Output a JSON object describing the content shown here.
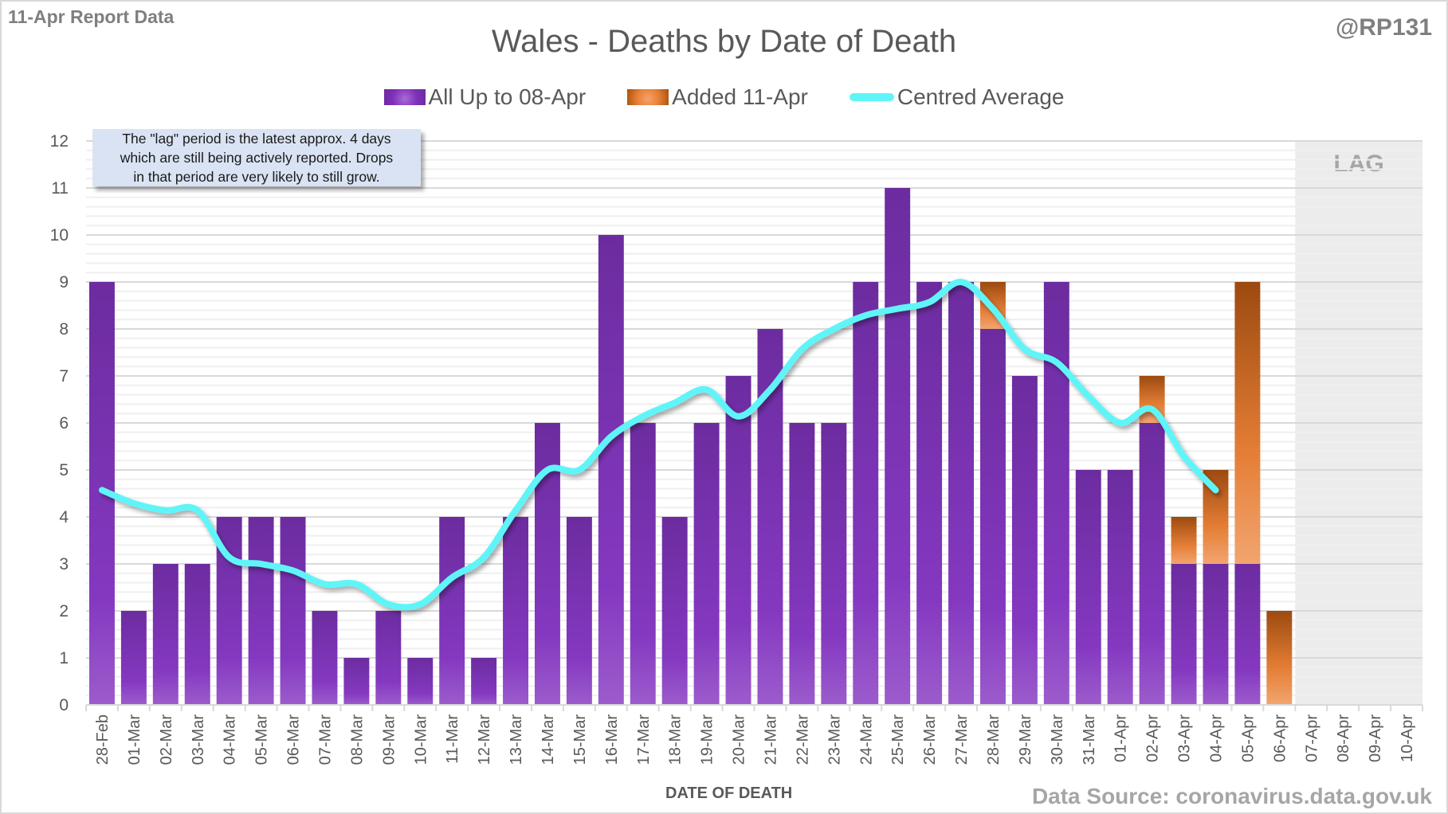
{
  "header": {
    "report_label": "11-Apr Report Data",
    "handle": "@RP131",
    "title": "Wales - Deaths by Date of Death"
  },
  "legend": [
    {
      "label": "All Up to 08-Apr",
      "icon": "purple-bar-swatch",
      "color": "#7e30b8"
    },
    {
      "label": "Added 11-Apr",
      "icon": "orange-bar-swatch",
      "color": "#e67e33"
    },
    {
      "label": "Centred Average",
      "icon": "cyan-line-swatch",
      "color": "#5ff5f8"
    }
  ],
  "annotation": {
    "lines": [
      "The \"lag\" period is the latest approx. 4 days",
      "which are still being actively reported.  Drops",
      "in that period are very likely to still grow."
    ]
  },
  "footer": {
    "xlabel": "DATE OF DEATH",
    "source": "Data Source: coronavirus.data.gov.uk"
  },
  "chart_data": {
    "type": "bar",
    "stacked": true,
    "title": "Wales - Deaths by Date of Death",
    "xlabel": "DATE OF DEATH",
    "ylabel": "",
    "ylim": [
      0,
      12
    ],
    "yticks": [
      0,
      1,
      2,
      3,
      4,
      5,
      6,
      7,
      8,
      9,
      10,
      11,
      12
    ],
    "grid": true,
    "legend_position": "top",
    "lag_region": {
      "label": "LAG",
      "from": "07-Apr",
      "to": "10-Apr"
    },
    "categories": [
      "28-Feb",
      "01-Mar",
      "02-Mar",
      "03-Mar",
      "04-Mar",
      "05-Mar",
      "06-Mar",
      "07-Mar",
      "08-Mar",
      "09-Mar",
      "10-Mar",
      "11-Mar",
      "12-Mar",
      "13-Mar",
      "14-Mar",
      "15-Mar",
      "16-Mar",
      "17-Mar",
      "18-Mar",
      "19-Mar",
      "20-Mar",
      "21-Mar",
      "22-Mar",
      "23-Mar",
      "24-Mar",
      "25-Mar",
      "26-Mar",
      "27-Mar",
      "28-Mar",
      "29-Mar",
      "30-Mar",
      "31-Mar",
      "01-Apr",
      "02-Apr",
      "03-Apr",
      "04-Apr",
      "05-Apr",
      "06-Apr",
      "07-Apr",
      "08-Apr",
      "09-Apr",
      "10-Apr"
    ],
    "series": [
      {
        "name": "All Up to 08-Apr",
        "type": "bar",
        "color": "#7e30b8",
        "values": [
          9,
          2,
          3,
          3,
          4,
          4,
          4,
          2,
          1,
          2,
          1,
          4,
          1,
          4,
          6,
          4,
          10,
          6,
          4,
          6,
          7,
          8,
          6,
          6,
          9,
          11,
          9,
          9,
          8,
          7,
          9,
          5,
          5,
          6,
          3,
          3,
          3,
          0,
          0,
          0,
          0,
          0
        ]
      },
      {
        "name": "Added 11-Apr",
        "type": "bar",
        "color": "#e67e33",
        "values": [
          0,
          0,
          0,
          0,
          0,
          0,
          0,
          0,
          0,
          0,
          0,
          0,
          0,
          0,
          0,
          0,
          0,
          0,
          0,
          0,
          0,
          0,
          0,
          0,
          0,
          0,
          0,
          0,
          1,
          0,
          0,
          0,
          0,
          1,
          1,
          2,
          6,
          2,
          0,
          0,
          0,
          0
        ]
      },
      {
        "name": "Centred Average",
        "type": "line",
        "color": "#5ff5f8",
        "values": [
          4.57,
          4.29,
          4.14,
          4.14,
          3.14,
          3.0,
          2.86,
          2.57,
          2.57,
          2.14,
          2.14,
          2.71,
          3.14,
          4.14,
          5.0,
          5.0,
          5.71,
          6.14,
          6.43,
          6.71,
          6.14,
          6.71,
          7.57,
          8.0,
          8.29,
          8.43,
          8.57,
          9.0,
          8.43,
          7.57,
          7.29,
          6.57,
          6.0,
          6.29,
          5.29,
          4.57,
          null,
          null,
          null,
          null,
          null,
          null
        ]
      }
    ]
  }
}
